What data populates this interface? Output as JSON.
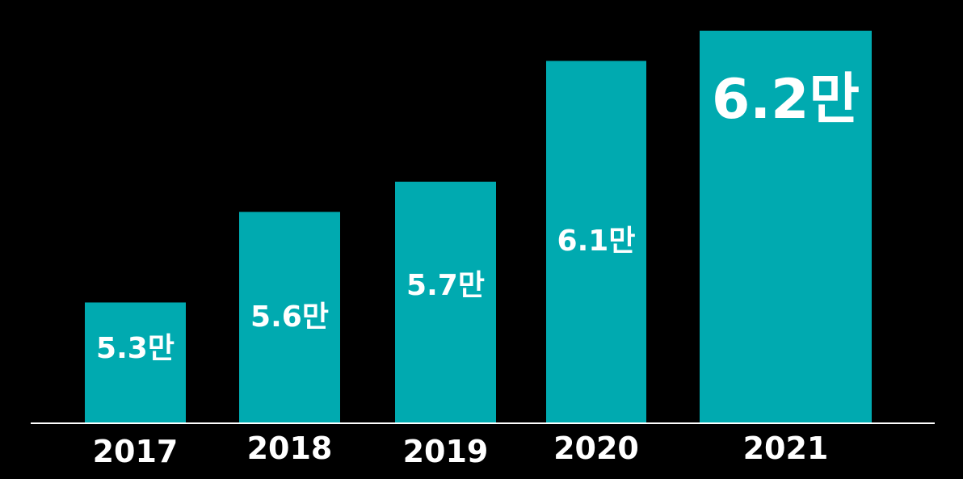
{
  "chart_data": {
    "type": "bar",
    "categories": [
      "2017",
      "2018",
      "2019",
      "2020",
      "2021"
    ],
    "values": [
      5.3,
      5.6,
      5.7,
      6.1,
      6.2
    ],
    "data_labels": [
      "5.3만",
      "5.6만",
      "5.7만",
      "6.1만",
      "6.2만"
    ],
    "title": "",
    "xlabel": "",
    "ylabel": "",
    "grid": false,
    "legend": "none",
    "colors": {
      "background": "#000000",
      "bar": "#00AAB0",
      "label": "#FFFFFF",
      "axis": "#FFFFFF"
    }
  }
}
